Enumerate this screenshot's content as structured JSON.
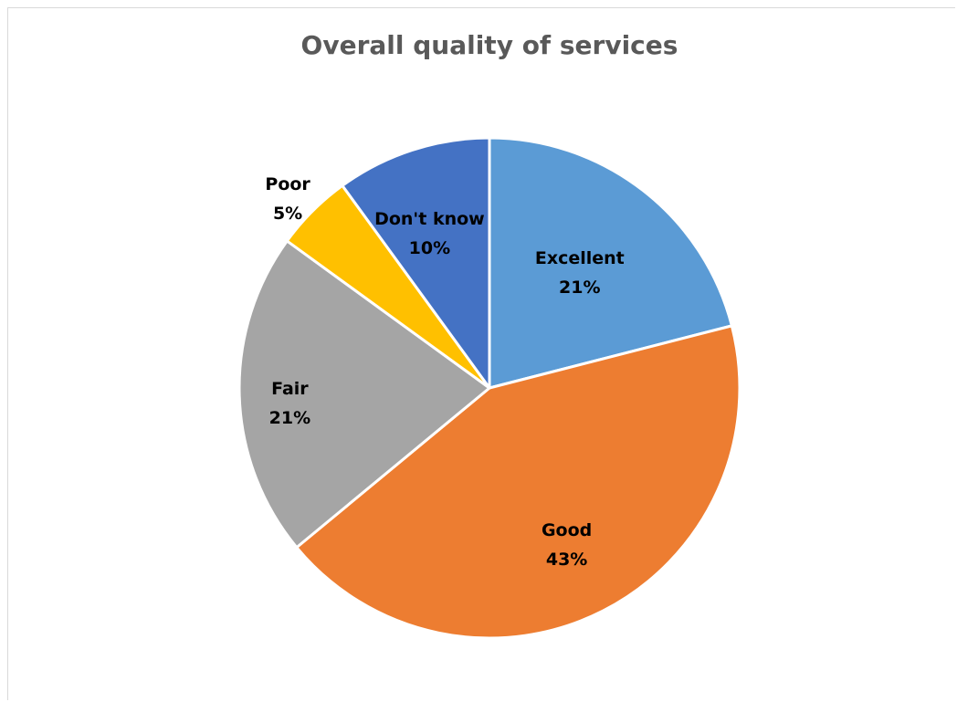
{
  "chart_data": {
    "type": "pie",
    "title": "Overall quality of services",
    "categories": [
      "Excellent",
      "Good",
      "Fair",
      "Poor",
      "Don't know"
    ],
    "values": [
      21,
      43,
      21,
      5,
      10
    ],
    "value_labels": [
      "21%",
      "43%",
      "21%",
      "5%",
      "10%"
    ],
    "colors": [
      "#5b9bd5",
      "#ed7d31",
      "#a5a5a5",
      "#ffc000",
      "#4472c4"
    ],
    "start_angle_deg": 0,
    "direction": "clockwise",
    "legend": "none",
    "data_labels": "category-and-percent"
  }
}
